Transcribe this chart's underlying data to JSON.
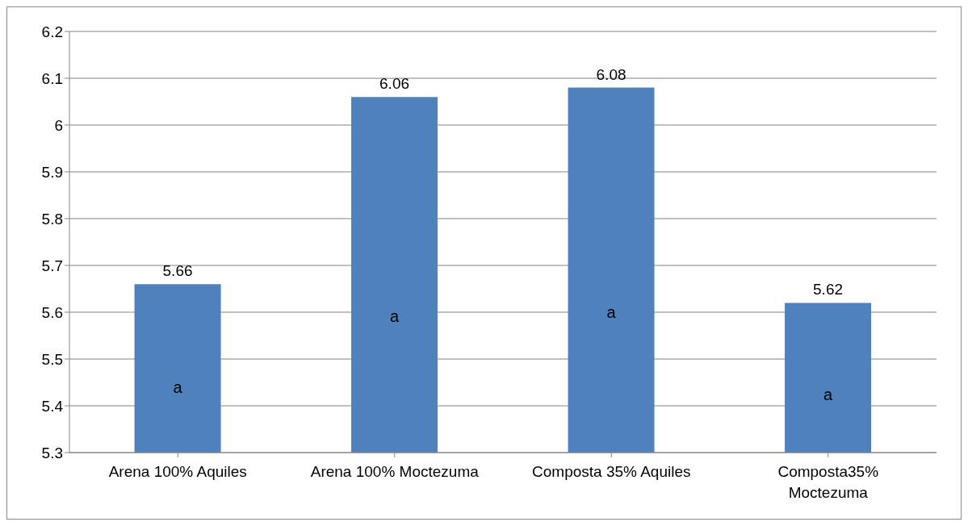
{
  "chart_data": {
    "type": "bar",
    "categories": [
      "Arena 100% Aquiles",
      "Arena 100% Moctezuma",
      "Composta 35% Aquiles",
      "Composta35% Moctezuma"
    ],
    "values": [
      5.66,
      6.06,
      6.08,
      5.62
    ],
    "color": "#4f81bd",
    "ylim": [
      5.3,
      6.2
    ],
    "yticks": [
      5.3,
      5.4,
      5.5,
      5.6,
      5.7,
      5.8,
      5.9,
      6,
      6.1,
      6.2
    ],
    "grid": "y",
    "data_labels": true,
    "legend": false,
    "annotations": [
      "a",
      "a",
      "a",
      "a"
    ]
  }
}
